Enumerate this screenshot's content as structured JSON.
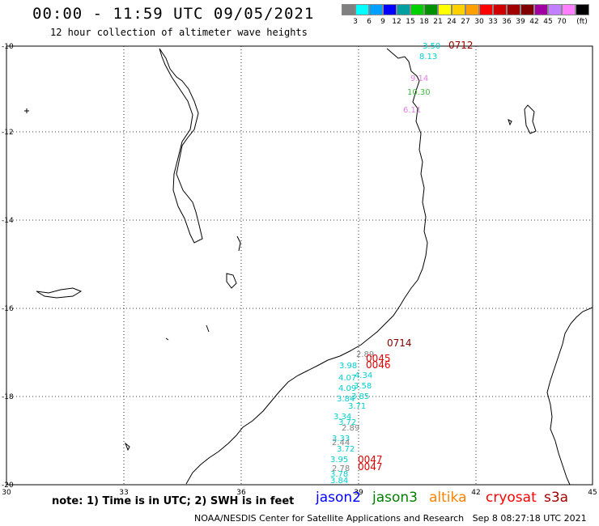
{
  "header": {
    "title": "00:00 - 11:59 UTC 09/05/2021",
    "subtitle": "12 hour collection of altimeter wave heights"
  },
  "colorbar": {
    "swatches": [
      "#808080",
      "#00ffff",
      "#00a0ff",
      "#0000ff",
      "#00a0a0",
      "#00d000",
      "#009000",
      "#ffff00",
      "#ffd000",
      "#ffa000",
      "#ff0000",
      "#d00000",
      "#a00000",
      "#800000",
      "#a000a0",
      "#c080ff",
      "#ff80ff",
      "#000000"
    ],
    "labels": [
      "3",
      "6",
      "9",
      "12",
      "15",
      "18",
      "21",
      "24",
      "27",
      "30",
      "33",
      "36",
      "39",
      "42",
      "45",
      "70",
      "(ft)"
    ]
  },
  "axes": {
    "lat_labels": [
      "-10",
      "-12",
      "-14",
      "-16",
      "-18",
      "-20"
    ],
    "lon_labels": [
      "30",
      "33",
      "36",
      "39",
      "42",
      "45"
    ]
  },
  "observations": [
    {
      "text": "3.50",
      "color": "#00d0d0"
    },
    {
      "text": "0712",
      "color": "#a00000"
    },
    {
      "text": "8.13",
      "color": "#00d0d0"
    },
    {
      "text": "9.14",
      "color": "#e080e0"
    },
    {
      "text": "10.30",
      "color": "#40c040"
    },
    {
      "text": "6.11",
      "color": "#e080e0"
    },
    {
      "text": "0714",
      "color": "#800000"
    },
    {
      "text": "2.89",
      "color": "#808080"
    },
    {
      "text": "0045",
      "color": "#e00000"
    },
    {
      "text": "0046",
      "color": "#e00000"
    },
    {
      "text": "3.98",
      "color": "#00d0d0"
    },
    {
      "text": "4.34",
      "color": "#00d0d0"
    },
    {
      "text": "4.07",
      "color": "#00d0d0"
    },
    {
      "text": "3.58",
      "color": "#00d0d0"
    },
    {
      "text": "4.09",
      "color": "#00d0d0"
    },
    {
      "text": "3.85",
      "color": "#00d0d0"
    },
    {
      "text": "3.84",
      "color": "#00d0d0"
    },
    {
      "text": "3.71",
      "color": "#00d0d0"
    },
    {
      "text": "3.34",
      "color": "#00d0d0"
    },
    {
      "text": "3.72",
      "color": "#00d0d0"
    },
    {
      "text": "2.89",
      "color": "#808080"
    },
    {
      "text": "3.33",
      "color": "#00d0d0"
    },
    {
      "text": "2.44",
      "color": "#808080"
    },
    {
      "text": "3.72",
      "color": "#00d0d0"
    },
    {
      "text": "0047",
      "color": "#e00000"
    },
    {
      "text": "3.95",
      "color": "#00d0d0"
    },
    {
      "text": "0047",
      "color": "#e00000"
    },
    {
      "text": "2.78",
      "color": "#808080"
    },
    {
      "text": "3.78",
      "color": "#00d0d0"
    },
    {
      "text": "3.84",
      "color": "#00d0d0"
    }
  ],
  "footer": {
    "note": "note: 1) Time is in UTC; 2) SWH is in feet",
    "satellites": [
      {
        "name": "jason2",
        "color": "#0000ff"
      },
      {
        "name": "jason3",
        "color": "#008000"
      },
      {
        "name": "altika",
        "color": "#ff8000"
      },
      {
        "name": "cryosat",
        "color": "#ff0000"
      },
      {
        "name": "s3a",
        "color": "#a00000"
      }
    ],
    "credit": "NOAA/NESDIS Center for Satellite Applications and Research",
    "timestamp": "Sep  8 08:27:18 UTC 2021"
  }
}
